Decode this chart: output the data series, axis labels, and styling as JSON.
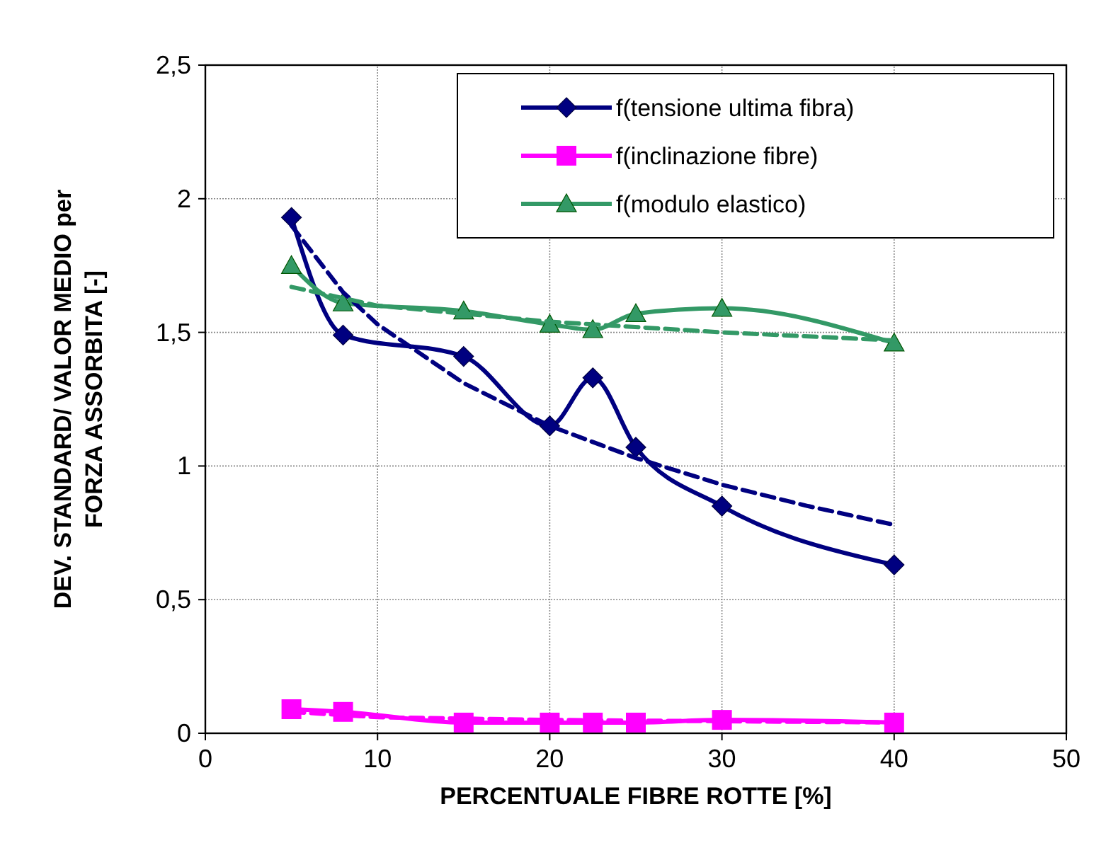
{
  "chart_data": {
    "type": "line",
    "xlabel": "PERCENTUALE FIBRE ROTTE [%]",
    "ylabel": "DEV. STANDARD/ VALOR MEDIO per\nFORZA ASSORBITA [-]",
    "xlim": [
      0,
      50
    ],
    "xticks": [
      0,
      10,
      20,
      30,
      40,
      50
    ],
    "ylim": [
      0,
      2.5
    ],
    "yticks": [
      0,
      {
        "value": 0.5,
        "label": "0,5"
      },
      1,
      {
        "value": 1.5,
        "label": "1,5"
      },
      2,
      {
        "value": 2.5,
        "label": "2,5"
      }
    ],
    "grid": true,
    "legend": "top right",
    "series": [
      {
        "name": "f(tensione ultima fibra)",
        "color": "#000080",
        "marker": "diamond",
        "line_style": "solid",
        "x": [
          5,
          8,
          15,
          20,
          22.5,
          25,
          30,
          40
        ],
        "values": [
          1.93,
          1.49,
          1.41,
          1.15,
          1.33,
          1.07,
          0.85,
          0.63
        ]
      },
      {
        "name": "f(inclinazione fibre)",
        "color": "#ff00ff",
        "marker": "square",
        "line_style": "solid",
        "x": [
          5,
          8,
          15,
          20,
          22.5,
          25,
          30,
          40
        ],
        "values": [
          0.09,
          0.08,
          0.04,
          0.04,
          0.04,
          0.04,
          0.05,
          0.04
        ]
      },
      {
        "name": "f(modulo elastico)",
        "color": "#339966",
        "marker": "triangle",
        "line_style": "solid",
        "x": [
          5,
          8,
          15,
          20,
          22.5,
          25,
          30,
          40
        ],
        "values": [
          1.75,
          1.61,
          1.58,
          1.53,
          1.51,
          1.57,
          1.59,
          1.46
        ]
      },
      {
        "color": "#000080",
        "marker": "none",
        "line_style": "dashed",
        "x": [
          5,
          8,
          10,
          15,
          20,
          25,
          30,
          35,
          40
        ],
        "values": [
          1.9,
          1.65,
          1.53,
          1.31,
          1.15,
          1.03,
          0.93,
          0.85,
          0.78
        ]
      },
      {
        "color": "#ff00ff",
        "marker": "none",
        "line_style": "dashed",
        "x": [
          5,
          10,
          20,
          30,
          40
        ],
        "values": [
          0.08,
          0.06,
          0.05,
          0.045,
          0.04
        ]
      },
      {
        "color": "#339966",
        "marker": "none",
        "line_style": "dashed",
        "x": [
          5,
          10,
          20,
          30,
          40
        ],
        "values": [
          1.67,
          1.6,
          1.54,
          1.5,
          1.47
        ]
      }
    ]
  }
}
